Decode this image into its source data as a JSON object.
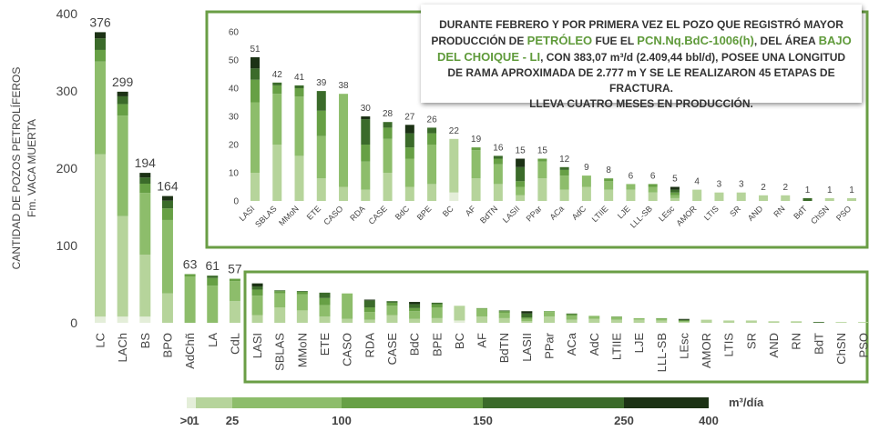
{
  "chart_data": [
    {
      "type": "bar",
      "y_label": [
        "CANTIDAD DE POZOS PETROLÍFEROS",
        "Fm. VACA MUERTA"
      ],
      "categories": [
        "LC",
        "LACh",
        "BS",
        "BPO",
        "AdChñ",
        "LA",
        "CdL",
        "LASI",
        "SBLAS",
        "MMoN",
        "ETE",
        "CASO",
        "RDA",
        "CASE",
        "BdC",
        "BPE",
        "BC",
        "AF",
        "BdTN",
        "LASII",
        "PPar",
        "ACa",
        "AdC",
        "LTIIE",
        "LJE",
        "LLL-SB",
        "LEsc",
        "AMOR",
        "LTIS",
        "SR",
        "AND",
        "RN",
        "BdT",
        "ChSN",
        "PSO"
      ],
      "totals": [
        376,
        299,
        194,
        164,
        63,
        61,
        57,
        null,
        null,
        null,
        null,
        null,
        null,
        null,
        null,
        null,
        null,
        null,
        null,
        null,
        null,
        null,
        null,
        null,
        null,
        null,
        null,
        null,
        null,
        null,
        null,
        null,
        null,
        null,
        null
      ],
      "series": [
        {
          "color": "#e4eed9",
          "values": [
            8,
            8,
            8,
            0,
            0,
            0,
            0,
            0,
            0,
            0,
            0,
            0,
            0,
            0,
            0,
            0,
            3,
            0,
            0,
            0,
            0,
            0,
            0,
            0,
            0,
            0,
            0,
            0,
            0,
            0,
            0,
            0,
            0,
            0,
            0
          ]
        },
        {
          "color": "#b6d49b",
          "values": [
            210,
            130,
            80,
            38,
            0,
            0,
            28,
            10,
            20,
            16,
            8,
            5,
            4,
            10,
            5,
            6,
            19,
            8,
            6,
            2,
            8,
            4,
            5,
            4,
            4,
            3,
            1,
            4,
            3,
            3,
            2,
            2,
            0,
            1,
            1
          ]
        },
        {
          "color": "#8dbd6b",
          "values": [
            120,
            130,
            80,
            95,
            60,
            48,
            26,
            25,
            18,
            21,
            15,
            33,
            10,
            12,
            10,
            14,
            0,
            10,
            7,
            3,
            6,
            5,
            4,
            3,
            2,
            2,
            1,
            0,
            0,
            0,
            0,
            0,
            0,
            0,
            0
          ]
        },
        {
          "color": "#67a045",
          "values": [
            15,
            15,
            12,
            15,
            3,
            10,
            3,
            8,
            3,
            3,
            9,
            0,
            6,
            4,
            4,
            4,
            0,
            1,
            2,
            2,
            1,
            2,
            0,
            1,
            0,
            1,
            1,
            0,
            0,
            0,
            0,
            0,
            0,
            0,
            0
          ]
        },
        {
          "color": "#3b6b2a",
          "values": [
            15,
            10,
            8,
            10,
            0,
            3,
            0,
            4,
            1,
            1,
            7,
            0,
            9,
            2,
            5,
            2,
            0,
            0,
            1,
            5,
            0,
            1,
            0,
            0,
            0,
            0,
            1,
            0,
            0,
            0,
            0,
            0,
            1,
            0,
            0
          ]
        },
        {
          "color": "#1c3215",
          "values": [
            8,
            6,
            6,
            6,
            0,
            0,
            0,
            4,
            0,
            0,
            0,
            0,
            1,
            0,
            3,
            0,
            0,
            0,
            0,
            3,
            0,
            0,
            0,
            0,
            0,
            0,
            1,
            0,
            0,
            0,
            0,
            0,
            0,
            0,
            0
          ]
        }
      ],
      "ylim": [
        0,
        400
      ],
      "yticks": [
        0,
        100,
        200,
        300,
        400
      ]
    },
    {
      "type": "bar",
      "categories": [
        "LASI",
        "SBLAS",
        "MMoN",
        "ETE",
        "CASO",
        "RDA",
        "CASE",
        "BdC",
        "BPE",
        "BC",
        "AF",
        "BdTN",
        "LASII",
        "PPar",
        "ACa",
        "AdC",
        "LTIIE",
        "LJE",
        "LLL-SB",
        "LEsc",
        "AMOR",
        "LTIS",
        "SR",
        "AND",
        "RN",
        "BdT",
        "ChSN",
        "PSO"
      ],
      "totals": [
        51,
        42,
        41,
        39,
        38,
        30,
        28,
        27,
        26,
        22,
        19,
        16,
        15,
        15,
        12,
        9,
        8,
        6,
        6,
        5,
        4,
        3,
        3,
        2,
        2,
        1,
        1,
        1
      ],
      "series": [
        {
          "color": "#e4eed9",
          "values": [
            0,
            0,
            0,
            0,
            0,
            0,
            0,
            0,
            0,
            3,
            0,
            0,
            0,
            0,
            0,
            0,
            0,
            0,
            0,
            0,
            0,
            0,
            0,
            0,
            0,
            0,
            0,
            0
          ]
        },
        {
          "color": "#b6d49b",
          "values": [
            10,
            20,
            16,
            8,
            5,
            4,
            10,
            5,
            6,
            19,
            8,
            6,
            2,
            8,
            4,
            5,
            4,
            4,
            3,
            1,
            4,
            3,
            3,
            2,
            2,
            0,
            1,
            1
          ]
        },
        {
          "color": "#8dbd6b",
          "values": [
            25,
            18,
            21,
            15,
            33,
            10,
            12,
            10,
            14,
            0,
            10,
            7,
            3,
            6,
            5,
            4,
            3,
            2,
            2,
            1,
            0,
            0,
            0,
            0,
            0,
            0,
            0,
            0
          ]
        },
        {
          "color": "#67a045",
          "values": [
            8,
            3,
            3,
            9,
            0,
            6,
            4,
            4,
            4,
            0,
            1,
            2,
            2,
            1,
            2,
            0,
            1,
            0,
            1,
            1,
            0,
            0,
            0,
            0,
            0,
            0,
            0,
            0
          ]
        },
        {
          "color": "#3b6b2a",
          "values": [
            4,
            1,
            1,
            7,
            0,
            9,
            2,
            5,
            2,
            0,
            0,
            1,
            5,
            0,
            1,
            0,
            0,
            0,
            0,
            1,
            0,
            0,
            0,
            0,
            0,
            1,
            0,
            0
          ]
        },
        {
          "color": "#1c3215",
          "values": [
            4,
            0,
            0,
            0,
            0,
            1,
            0,
            3,
            0,
            0,
            0,
            0,
            3,
            0,
            0,
            0,
            0,
            0,
            0,
            1,
            0,
            0,
            0,
            0,
            0,
            0,
            0,
            0
          ]
        }
      ],
      "ylim": [
        0,
        60
      ],
      "yticks": [
        0,
        10,
        20,
        30,
        40,
        50,
        60
      ]
    }
  ],
  "legend": {
    "ticks": [
      {
        "value": 0,
        "label": ">0"
      },
      1,
      25,
      100,
      150,
      250,
      400
    ],
    "unit": "m³/día"
  },
  "annotation": {
    "highlight_color": "#5f9a3a",
    "lines": [
      [
        {
          "text": "DURANTE FEBRERO Y POR PRIMERA VEZ EL POZO QUE REGISTRÓ MAYOR"
        }
      ],
      [
        {
          "text": "PRODUCCIÓN DE "
        },
        {
          "text": "PETRÓLEO",
          "highlight": true
        },
        {
          "text": " FUE EL "
        },
        {
          "text": "PCN.Nq.BdC-1006(h)",
          "highlight": true
        },
        {
          "text": ", DEL ÁREA "
        },
        {
          "text": "BAJO",
          "highlight": true
        }
      ],
      [
        {
          "text": "DEL CHOIQUE - LI",
          "highlight": true
        },
        {
          "text": ", CON 383,07 m³/d (2.409,44 bbl/d), POSEE UNA LONGITUD"
        }
      ],
      [
        {
          "text": "DE RAMA APROXIMADA DE 2.777 m Y SE LE REALIZARON 45 ETAPAS DE FRACTURA."
        }
      ],
      [
        {
          "text": "LLEVA CUATRO MESES EN PRODUCCIÓN."
        }
      ]
    ]
  }
}
